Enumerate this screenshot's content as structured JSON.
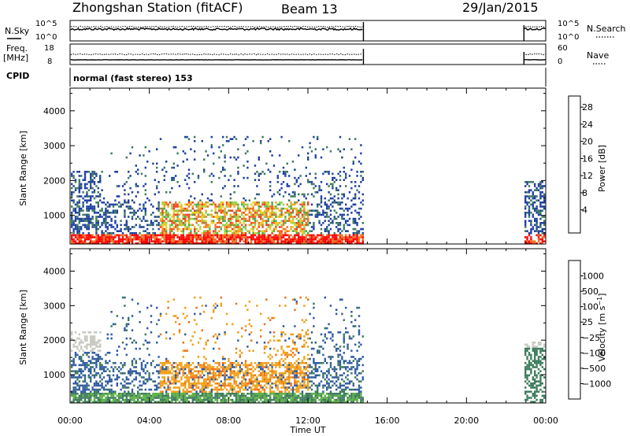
{
  "header": {
    "title": "Zhongshan Station (fitACF)",
    "beam": "Beam 13",
    "date": "29/Jan/2015"
  },
  "panels": {
    "nsky_label": "N.Sky",
    "nsearch_label": "N.Search",
    "nsky_ticks": [
      "10^5",
      "10^0"
    ],
    "freq_label_top": "Freq.",
    "freq_label_unit": "[MHz]",
    "freq_ticks": [
      "18",
      "8"
    ],
    "nave_label": "Nave",
    "nave_ticks": [
      "60",
      "0"
    ],
    "cpid_label": "CPID",
    "cpid_value": "normal (fast stereo) 153"
  },
  "chart_data": [
    {
      "type": "heatmap",
      "name": "power",
      "ylabel": "Slant Range [km]",
      "xlabel": "Time UT",
      "x_ticks": [
        "00:00",
        "04:00",
        "08:00",
        "12:00",
        "16:00",
        "20:00",
        "00:00"
      ],
      "xlim_hours": [
        0,
        24
      ],
      "y_ticks": [
        "4000",
        "3000",
        "2000",
        "1000"
      ],
      "ylim_km": [
        180,
        4650
      ],
      "colorbar": {
        "label": "Power [dB]",
        "ticks": [
          "28",
          "24",
          "20",
          "16",
          "12",
          "8",
          "4"
        ],
        "range": [
          0,
          30
        ],
        "colors": [
          "#1010ff",
          "#1e3fa0",
          "#2f5fa8",
          "#3c7a5c",
          "#4aa84a",
          "#8fd04a",
          "#e8d020",
          "#f8a018",
          "#f07020",
          "#f04020",
          "#ff0000"
        ]
      }
    },
    {
      "type": "heatmap",
      "name": "velocity",
      "ylabel": "Slant Range [km]",
      "xlabel": "Time UT",
      "x_ticks": [
        "00:00",
        "04:00",
        "08:00",
        "12:00",
        "16:00",
        "20:00",
        "00:00"
      ],
      "xlim_hours": [
        0,
        24
      ],
      "y_ticks": [
        "4000",
        "3000",
        "2000",
        "1000"
      ],
      "ylim_km": [
        180,
        4650
      ],
      "colorbar": {
        "label": "Velocity [m s^-1]",
        "ticks": [
          "1000",
          "500",
          "100",
          "25",
          "−25",
          "−100",
          "−500",
          "−1000"
        ],
        "colors": [
          "#1a30c8",
          "#2e5aa0",
          "#3c7a5c",
          "#58b040",
          "#c8c8c0",
          "#f0c020",
          "#f0a018",
          "#f07018",
          "#f04020",
          "#ff0000"
        ]
      }
    }
  ],
  "axis": {
    "xlabel": "Time UT"
  }
}
